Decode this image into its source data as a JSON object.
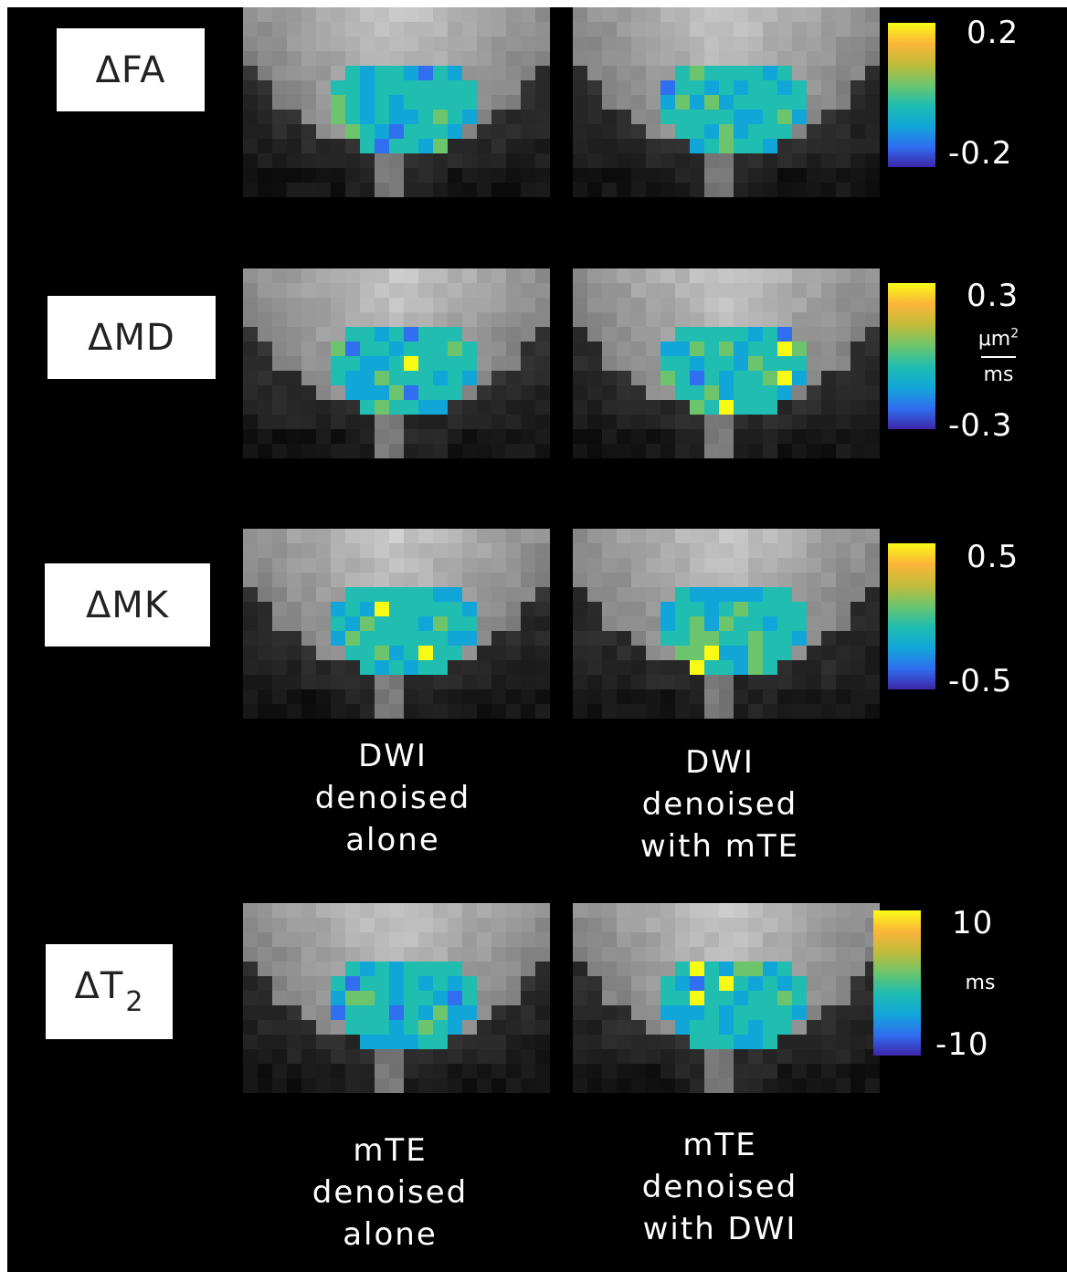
{
  "rows": [
    {
      "id": "fa",
      "label": "ΔFA",
      "cb_max": "0.2",
      "cb_min": "-0.2"
    },
    {
      "id": "md",
      "label": "ΔMD",
      "cb_max": "0.3",
      "cb_min": "-0.3",
      "unit_num": "μm",
      "unit_sup": "2",
      "unit_den": "ms"
    },
    {
      "id": "mk",
      "label": "ΔMK",
      "cb_max": "0.5",
      "cb_min": "-0.5"
    },
    {
      "id": "t2",
      "label": "ΔT",
      "label_sub": "2",
      "cb_max": "10",
      "cb_min": "-10",
      "unit": "ms"
    }
  ],
  "captions": {
    "dwi_alone": [
      "DWI",
      "denoised",
      "alone"
    ],
    "dwi_with_mte": [
      "DWI",
      "denoised",
      "with mTE"
    ],
    "mte_alone": [
      "mTE",
      "denoised",
      "alone"
    ],
    "mte_with_dwi": [
      "mTE",
      "denoised",
      "with DWI"
    ]
  },
  "colormap": [
    "#3e26a8",
    "#2f6ff0",
    "#12a6d8",
    "#20bdb0",
    "#6cc56c",
    "#c2bc3a",
    "#fbb53a",
    "#f9fb15"
  ]
}
